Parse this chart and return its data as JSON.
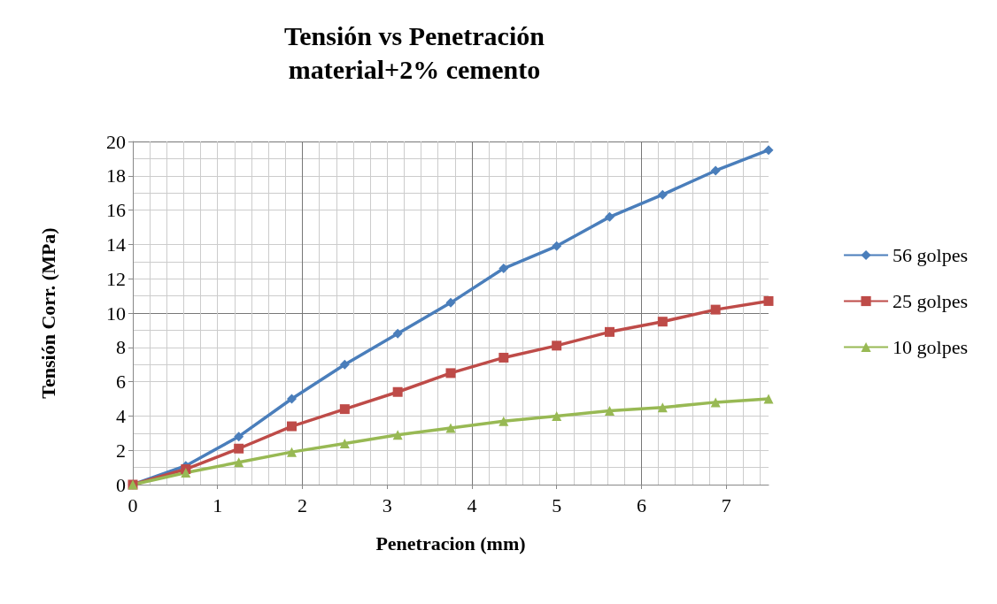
{
  "chart_data": {
    "type": "line",
    "title": "Tensión vs Penetración\nmaterial+2% cemento",
    "xlabel": "Penetracion (mm)",
    "ylabel": "Tensión Corr. (MPa)",
    "x": [
      0,
      0.625,
      1.25,
      1.875,
      2.5,
      3.125,
      3.75,
      4.375,
      5,
      5.625,
      6.25,
      6.875,
      7.5
    ],
    "series": [
      {
        "name": "56 golpes",
        "color": "#4a7ebb",
        "marker": "diamond",
        "values": [
          0,
          1.1,
          2.8,
          5.0,
          7.0,
          8.8,
          10.6,
          12.6,
          13.9,
          15.6,
          16.9,
          18.3,
          19.5
        ]
      },
      {
        "name": "25 golpes",
        "color": "#be4b48",
        "marker": "square",
        "values": [
          0,
          0.9,
          2.1,
          3.4,
          4.4,
          5.4,
          6.5,
          7.4,
          8.1,
          8.9,
          9.5,
          10.2,
          10.7
        ]
      },
      {
        "name": "10 golpes",
        "color": "#98b954",
        "marker": "triangle",
        "values": [
          0,
          0.7,
          1.3,
          1.9,
          2.4,
          2.9,
          3.3,
          3.7,
          4.0,
          4.3,
          4.5,
          4.8,
          5.0
        ]
      }
    ],
    "xlim": [
      0,
      7.5
    ],
    "xticks": [
      0,
      1,
      2,
      3,
      4,
      5,
      6,
      7
    ],
    "ylim": [
      0,
      20
    ],
    "yticks": [
      0,
      2,
      4,
      6,
      8,
      10,
      12,
      14,
      16,
      18,
      20
    ],
    "grid": true,
    "legend": "right",
    "line_style": "solid"
  }
}
